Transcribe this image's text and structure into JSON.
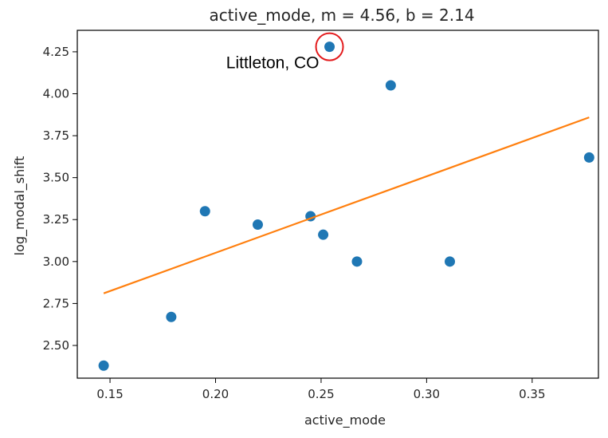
{
  "chart_data": {
    "type": "scatter",
    "title": "active_mode, m = 4.56, b = 2.14",
    "xlabel": "active_mode",
    "ylabel": "log_modal_shift",
    "xlim": [
      0.1345,
      0.3814
    ],
    "ylim": [
      2.305,
      4.378
    ],
    "x_ticks": [
      0.15,
      0.2,
      0.25,
      0.3,
      0.35
    ],
    "x_tick_labels": [
      "0.15",
      "0.20",
      "0.25",
      "0.30",
      "0.35"
    ],
    "y_ticks": [
      2.5,
      2.75,
      3.0,
      3.25,
      3.5,
      3.75,
      4.0,
      4.25
    ],
    "y_tick_labels": [
      "2.50",
      "2.75",
      "3.00",
      "3.25",
      "3.50",
      "3.75",
      "4.00",
      "4.25"
    ],
    "grid": false,
    "series": [
      {
        "type": "scatter",
        "color": "#1f77b4",
        "points": [
          {
            "x": 0.147,
            "y": 2.38
          },
          {
            "x": 0.179,
            "y": 2.67
          },
          {
            "x": 0.195,
            "y": 3.3
          },
          {
            "x": 0.22,
            "y": 3.22
          },
          {
            "x": 0.245,
            "y": 3.27
          },
          {
            "x": 0.251,
            "y": 3.16
          },
          {
            "x": 0.254,
            "y": 4.28
          },
          {
            "x": 0.267,
            "y": 3.0
          },
          {
            "x": 0.283,
            "y": 4.05
          },
          {
            "x": 0.311,
            "y": 3.0
          },
          {
            "x": 0.377,
            "y": 3.62
          }
        ]
      },
      {
        "type": "line",
        "color": "#ff7f0e",
        "slope": 4.56,
        "intercept": 2.14,
        "x_range": [
          0.147,
          0.377
        ]
      }
    ],
    "annotations": [
      {
        "text": "Littleton, CO",
        "x": 0.254,
        "y": 4.28,
        "highlight_color": "#e31a1c"
      }
    ]
  }
}
